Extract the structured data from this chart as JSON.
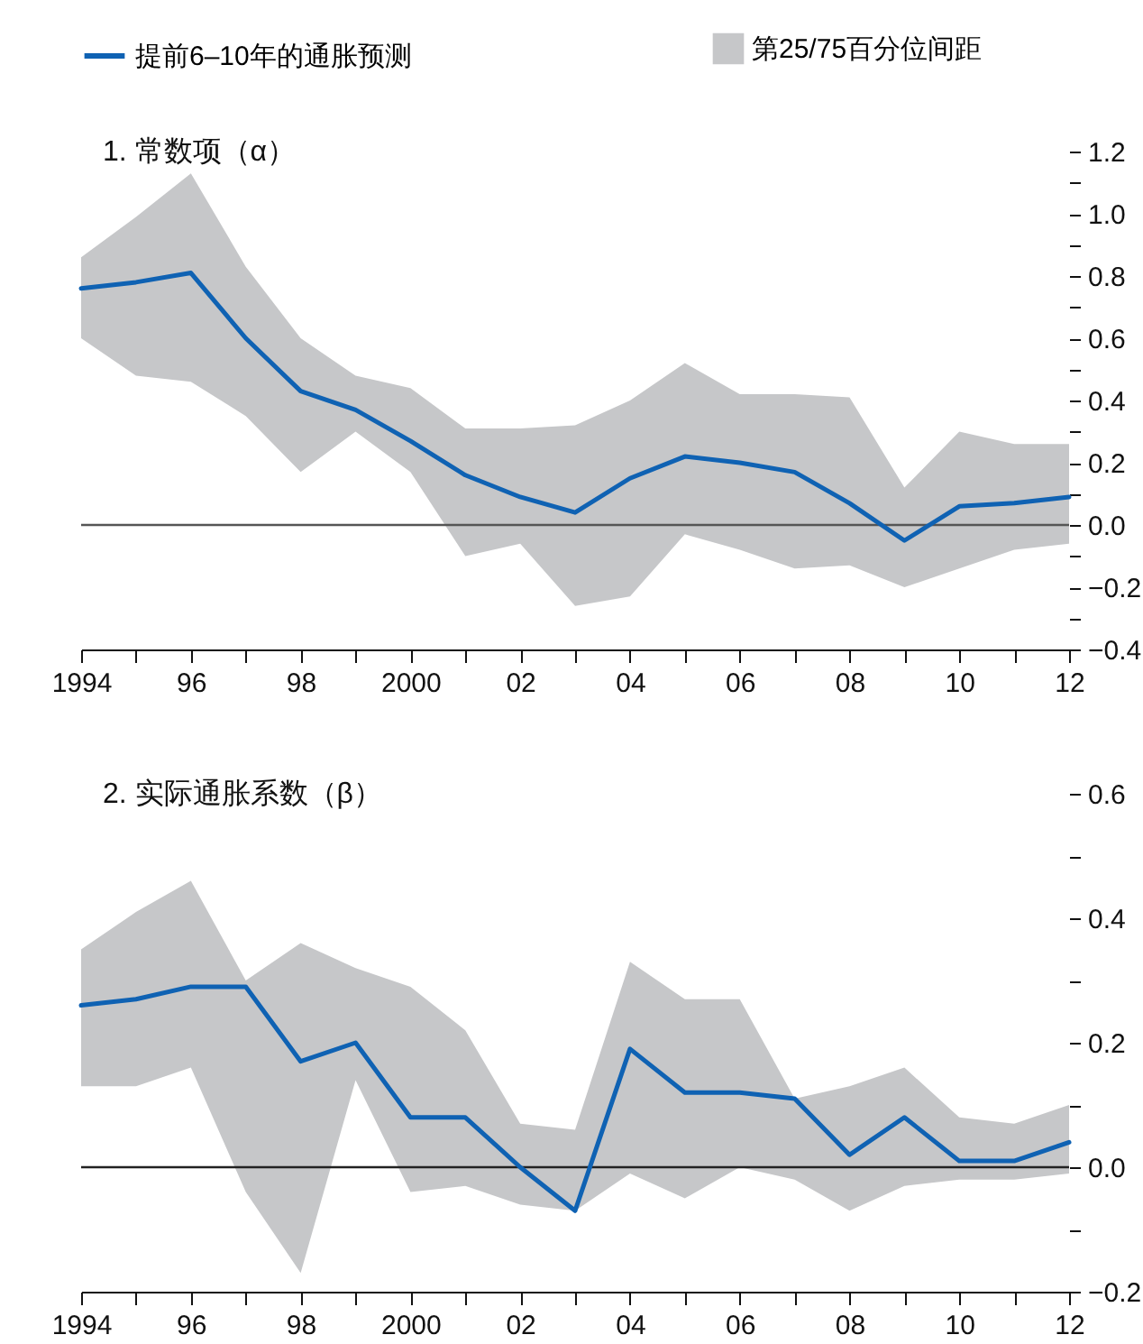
{
  "chart_data": [
    {
      "type": "line",
      "title": "1. 常数项（α）",
      "legend": "top",
      "annotations": [
        "第25/75百分位间距"
      ],
      "x": [
        1994,
        1995,
        1996,
        1997,
        1998,
        1999,
        2000,
        2001,
        2002,
        2003,
        2004,
        2005,
        2006,
        2007,
        2008,
        2009,
        2010,
        2011,
        2012
      ],
      "xlim": [
        1994,
        2012
      ],
      "xticks": [
        {
          "value": 1994,
          "label": "1994"
        },
        {
          "value": 1995,
          "label": null
        },
        {
          "value": 1996,
          "label": "96"
        },
        {
          "value": 1997,
          "label": null
        },
        {
          "value": 1998,
          "label": "98"
        },
        {
          "value": 1999,
          "label": null
        },
        {
          "value": 2000,
          "label": "2000"
        },
        {
          "value": 2001,
          "label": null
        },
        {
          "value": 2002,
          "label": "02"
        },
        {
          "value": 2003,
          "label": null
        },
        {
          "value": 2004,
          "label": "04"
        },
        {
          "value": 2005,
          "label": null
        },
        {
          "value": 2006,
          "label": "06"
        },
        {
          "value": 2007,
          "label": null
        },
        {
          "value": 2008,
          "label": "08"
        },
        {
          "value": 2009,
          "label": null
        },
        {
          "value": 2010,
          "label": "10"
        },
        {
          "value": 2011,
          "label": null
        },
        {
          "value": 2012,
          "label": "12"
        }
      ],
      "ylim": [
        -0.4,
        1.2
      ],
      "yticks": [
        {
          "value": -0.4,
          "label": "−0.4"
        },
        {
          "value": -0.3,
          "label": null
        },
        {
          "value": -0.2,
          "label": "−0.2"
        },
        {
          "value": -0.1,
          "label": null
        },
        {
          "value": 0,
          "label": "0.0"
        },
        {
          "value": 0.1,
          "label": null
        },
        0.2,
        {
          "value": 0.3,
          "label": null
        },
        0.4,
        {
          "value": 0.5,
          "label": null
        },
        0.6,
        {
          "value": 0.7,
          "label": null
        },
        0.8,
        {
          "value": 0.9,
          "label": null
        },
        {
          "value": 1,
          "label": "1.0"
        },
        {
          "value": 1.1,
          "label": null
        },
        1.2
      ],
      "ref_lines": [
        {
          "axis": "y",
          "value": 0,
          "color": "#555555"
        }
      ],
      "series": [
        {
          "name": "提前6–10年的通胀预测",
          "type": "line",
          "color": "#0f62b3",
          "values": [
            0.76,
            0.78,
            0.81,
            0.6,
            0.43,
            0.37,
            0.27,
            0.16,
            0.09,
            0.04,
            0.15,
            0.22,
            0.2,
            0.17,
            0.07,
            -0.05,
            0.06,
            0.07,
            0.09
          ],
          "lower": [
            0.6,
            0.48,
            0.46,
            0.35,
            0.17,
            0.3,
            0.17,
            -0.1,
            -0.06,
            -0.26,
            -0.23,
            -0.03,
            -0.08,
            -0.14,
            -0.13,
            -0.2,
            -0.14,
            -0.08,
            -0.06
          ],
          "upper": [
            0.86,
            0.99,
            1.13,
            0.83,
            0.6,
            0.48,
            0.44,
            0.31,
            0.31,
            0.32,
            0.4,
            0.52,
            0.42,
            0.42,
            0.41,
            0.12,
            0.3,
            0.26,
            0.26
          ]
        }
      ]
    },
    {
      "type": "line",
      "title": "2. 实际通胀系数（β）",
      "x": [
        1994,
        1995,
        1996,
        1997,
        1998,
        1999,
        2000,
        2001,
        2002,
        2003,
        2004,
        2005,
        2006,
        2007,
        2008,
        2009,
        2010,
        2011,
        2012
      ],
      "xlim": [
        1994,
        2012
      ],
      "xticks": [
        {
          "value": 1994,
          "label": "1994"
        },
        {
          "value": 1995,
          "label": null
        },
        {
          "value": 1996,
          "label": "96"
        },
        {
          "value": 1997,
          "label": null
        },
        {
          "value": 1998,
          "label": "98"
        },
        {
          "value": 1999,
          "label": null
        },
        {
          "value": 2000,
          "label": "2000"
        },
        {
          "value": 2001,
          "label": null
        },
        {
          "value": 2002,
          "label": "02"
        },
        {
          "value": 2003,
          "label": null
        },
        {
          "value": 2004,
          "label": "04"
        },
        {
          "value": 2005,
          "label": null
        },
        {
          "value": 2006,
          "label": "06"
        },
        {
          "value": 2007,
          "label": null
        },
        {
          "value": 2008,
          "label": "08"
        },
        {
          "value": 2009,
          "label": null
        },
        {
          "value": 2010,
          "label": "10"
        },
        {
          "value": 2011,
          "label": null
        },
        {
          "value": 2012,
          "label": "12"
        }
      ],
      "ylim": [
        -0.2,
        0.6
      ],
      "yticks": [
        {
          "value": -0.2,
          "label": "−0.2"
        },
        {
          "value": -0.1,
          "label": null
        },
        {
          "value": 0,
          "label": "0.0"
        },
        {
          "value": 0.1,
          "label": null
        },
        0.2,
        {
          "value": 0.3,
          "label": null
        },
        0.4,
        {
          "value": 0.5,
          "label": null
        },
        0.6
      ],
      "ref_lines": [
        {
          "axis": "y",
          "value": 0,
          "color": "#222222"
        }
      ],
      "series": [
        {
          "type": "line",
          "color": "#0f62b3",
          "values": [
            0.26,
            0.27,
            0.29,
            0.29,
            0.17,
            0.2,
            0.08,
            0.08,
            0,
            -0.07,
            0.19,
            0.12,
            0.12,
            0.11,
            0.02,
            0.08,
            0.01,
            0.01,
            0.04
          ],
          "lower": [
            0.13,
            0.13,
            0.16,
            -0.04,
            -0.17,
            0.14,
            -0.04,
            -0.03,
            -0.06,
            -0.07,
            -0.01,
            -0.05,
            0,
            -0.02,
            -0.07,
            -0.03,
            -0.02,
            -0.02,
            -0.01
          ],
          "upper": [
            0.35,
            0.41,
            0.46,
            0.3,
            0.36,
            0.32,
            0.29,
            0.22,
            0.07,
            0.06,
            0.33,
            0.27,
            0.27,
            0.11,
            0.13,
            0.16,
            0.08,
            0.07,
            0.1
          ]
        }
      ]
    }
  ]
}
